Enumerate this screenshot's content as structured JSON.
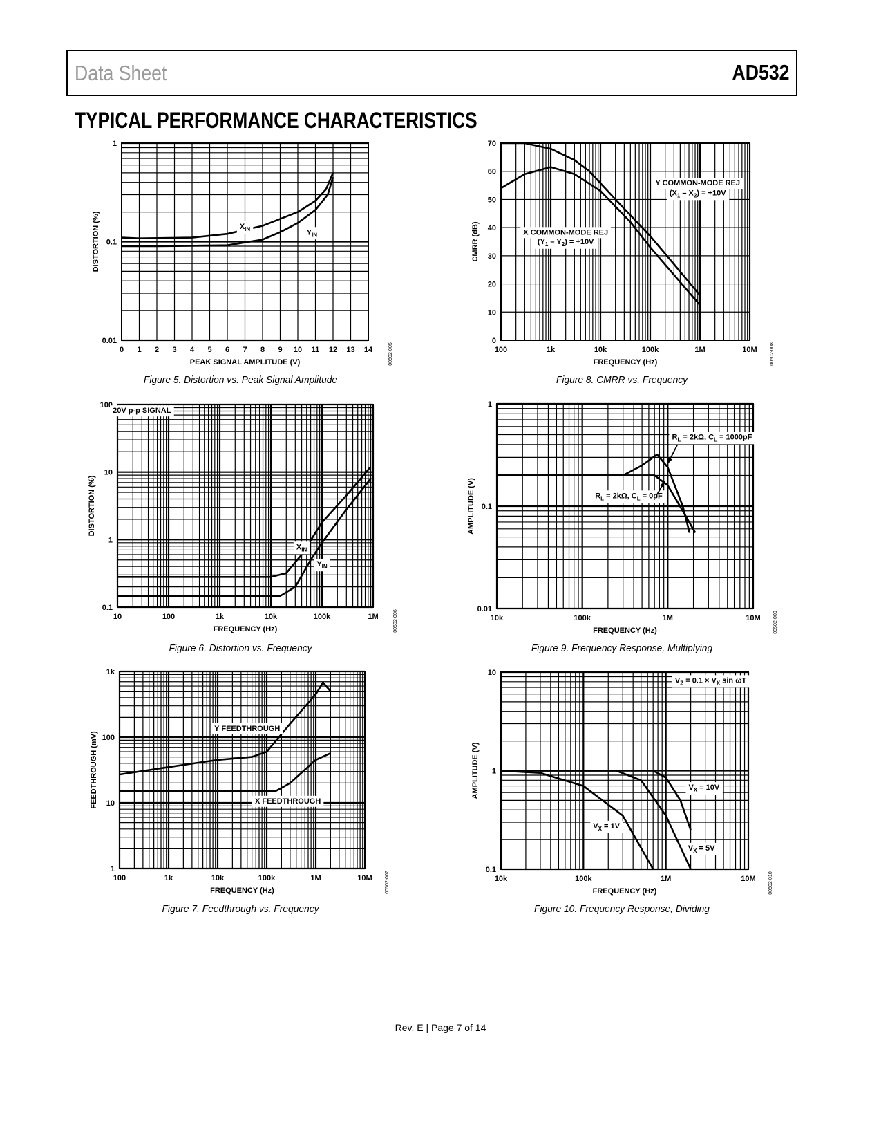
{
  "header": {
    "left": "Data Sheet",
    "right": "AD532"
  },
  "section_title": "TYPICAL PERFORMANCE CHARACTERISTICS",
  "footer": "Rev. E | Page 7 of 14",
  "chart_data": [
    {
      "id": "fig5",
      "type": "line",
      "caption": "Figure 5. Distortion vs. Peak Signal Amplitude",
      "code": "00502-005",
      "xlabel": "PEAK SIGNAL AMPLITUDE (V)",
      "ylabel": "DISTORTION (%)",
      "xscale": "linear",
      "xlim": [
        0,
        14
      ],
      "yscale": "log",
      "ylim": [
        0.01,
        1
      ],
      "xticks": [
        [
          0,
          "0"
        ],
        [
          1,
          "1"
        ],
        [
          2,
          "2"
        ],
        [
          3,
          "3"
        ],
        [
          4,
          "4"
        ],
        [
          5,
          "5"
        ],
        [
          6,
          "6"
        ],
        [
          7,
          "7"
        ],
        [
          8,
          "8"
        ],
        [
          9,
          "9"
        ],
        [
          10,
          "10"
        ],
        [
          11,
          "11"
        ],
        [
          12,
          "12"
        ],
        [
          13,
          "13"
        ],
        [
          14,
          "14"
        ]
      ],
      "yticks": [
        [
          0.01,
          "0.01"
        ],
        [
          0.1,
          "0.1"
        ],
        [
          1,
          "1"
        ]
      ],
      "series": [
        {
          "name": "XIN",
          "points": [
            [
              0,
              0.11
            ],
            [
              1,
              0.108
            ],
            [
              4,
              0.11
            ],
            [
              6,
              0.12
            ],
            [
              8,
              0.145
            ],
            [
              10,
              0.2
            ],
            [
              11,
              0.26
            ],
            [
              11.6,
              0.34
            ],
            [
              12,
              0.5
            ]
          ]
        },
        {
          "name": "YIN",
          "points": [
            [
              0,
              0.09
            ],
            [
              2,
              0.09
            ],
            [
              6,
              0.092
            ],
            [
              8,
              0.105
            ],
            [
              9,
              0.125
            ],
            [
              10,
              0.155
            ],
            [
              11,
              0.21
            ],
            [
              11.7,
              0.3
            ],
            [
              12,
              0.45
            ]
          ]
        }
      ],
      "annotations": [
        {
          "at": [
            7,
            0.135
          ],
          "parts": [
            {
              "t": "X"
            },
            {
              "t": "IN",
              "sub": true
            }
          ]
        },
        {
          "at": [
            10.8,
            0.118
          ],
          "parts": [
            {
              "t": "Y"
            },
            {
              "t": "IN",
              "sub": true
            }
          ]
        }
      ]
    },
    {
      "id": "fig8",
      "type": "line",
      "caption": "Figure 8. CMRR vs. Frequency",
      "code": "00502-008",
      "xlabel": "FREQUENCY (Hz)",
      "ylabel": "CMRR (dB)",
      "xscale": "log",
      "xlim": [
        100,
        10000000
      ],
      "yscale": "linear",
      "ylim": [
        0,
        70
      ],
      "xticks": [
        [
          100,
          "100"
        ],
        [
          1000,
          "1k"
        ],
        [
          10000,
          "10k"
        ],
        [
          100000,
          "100k"
        ],
        [
          1000000,
          "1M"
        ],
        [
          10000000,
          "10M"
        ]
      ],
      "yticks": [
        [
          0,
          "0"
        ],
        [
          10,
          "10"
        ],
        [
          20,
          "20"
        ],
        [
          30,
          "30"
        ],
        [
          40,
          "40"
        ],
        [
          50,
          "50"
        ],
        [
          60,
          "60"
        ],
        [
          70,
          "70"
        ]
      ],
      "series": [
        {
          "name": "Y COMMON-MODE REJ",
          "points": [
            [
              100,
              70
            ],
            [
              300,
              70
            ],
            [
              1000,
              68
            ],
            [
              3000,
              64
            ],
            [
              6000,
              60
            ],
            [
              20000,
              50
            ],
            [
              100000,
              37
            ],
            [
              300000,
              27
            ],
            [
              1000000,
              16
            ]
          ]
        },
        {
          "name": "X COMMON-MODE REJ",
          "points": [
            [
              100,
              54
            ],
            [
              300,
              59
            ],
            [
              1000,
              61.5
            ],
            [
              3000,
              59
            ],
            [
              10000,
              53
            ],
            [
              40000,
              42
            ],
            [
              100000,
              33
            ],
            [
              1000000,
              12.5
            ]
          ]
        }
      ],
      "annotations": [
        {
          "at": [
            900000,
            55
          ],
          "parts": [
            {
              "t": "Y COMMON-MODE REJ"
            }
          ]
        },
        {
          "at": [
            900000,
            51.5
          ],
          "parts": [
            {
              "t": "(X"
            },
            {
              "t": "1",
              "sub": true
            },
            {
              "t": " – X"
            },
            {
              "t": "2",
              "sub": true
            },
            {
              "t": ") = +10V"
            }
          ]
        },
        {
          "at": [
            2000,
            37.5
          ],
          "parts": [
            {
              "t": "X COMMON-MODE REJ"
            }
          ]
        },
        {
          "at": [
            2000,
            34.2
          ],
          "parts": [
            {
              "t": "(Y"
            },
            {
              "t": "1",
              "sub": true
            },
            {
              "t": " – Y"
            },
            {
              "t": "2",
              "sub": true
            },
            {
              "t": ") = +10V"
            }
          ]
        }
      ]
    },
    {
      "id": "fig6",
      "type": "line",
      "caption": "Figure 6. Distortion vs. Frequency",
      "code": "00502-006",
      "xlabel": "FREQUENCY (Hz)",
      "ylabel": "DISTORTION (%)",
      "xscale": "log",
      "xlim": [
        10,
        1000000
      ],
      "yscale": "log",
      "ylim": [
        0.1,
        100
      ],
      "xticks": [
        [
          10,
          "10"
        ],
        [
          100,
          "100"
        ],
        [
          1000,
          "1k"
        ],
        [
          10000,
          "10k"
        ],
        [
          100000,
          "100k"
        ],
        [
          1000000,
          "1M"
        ]
      ],
      "yticks": [
        [
          0.1,
          "0.1"
        ],
        [
          1,
          "1"
        ],
        [
          10,
          "10"
        ],
        [
          100,
          "100"
        ]
      ],
      "series": [
        {
          "name": "XIN",
          "points": [
            [
              10,
              0.28
            ],
            [
              10000,
              0.28
            ],
            [
              20000,
              0.32
            ],
            [
              40000,
              0.6
            ],
            [
              100000,
              1.8
            ],
            [
              300000,
              4.5
            ],
            [
              900000,
              12
            ]
          ]
        },
        {
          "name": "YIN",
          "points": [
            [
              10,
              0.145
            ],
            [
              15000,
              0.145
            ],
            [
              30000,
              0.2
            ],
            [
              60000,
              0.5
            ],
            [
              100000,
              0.9
            ],
            [
              300000,
              2.8
            ],
            [
              900000,
              8
            ]
          ]
        }
      ],
      "annotations": [
        {
          "at": [
            30,
            75
          ],
          "parts": [
            {
              "t": "20V p-p SIGNAL"
            }
          ]
        },
        {
          "at": [
            40000,
            0.72
          ],
          "parts": [
            {
              "t": "X"
            },
            {
              "t": "IN",
              "sub": true
            }
          ]
        },
        {
          "at": [
            100000,
            0.4
          ],
          "parts": [
            {
              "t": "Y"
            },
            {
              "t": "IN",
              "sub": true
            }
          ]
        }
      ]
    },
    {
      "id": "fig9",
      "type": "line",
      "caption": "Figure 9. Frequency Response, Multiplying",
      "code": "00502-009",
      "xlabel": "FREQUENCY (Hz)",
      "ylabel": "AMPLITUDE (V)",
      "xscale": "log",
      "xlim": [
        10000,
        10000000
      ],
      "yscale": "log",
      "ylim": [
        0.01,
        1
      ],
      "xticks": [
        [
          10000,
          "10k"
        ],
        [
          100000,
          "100k"
        ],
        [
          1000000,
          "1M"
        ],
        [
          10000000,
          "10M"
        ]
      ],
      "yticks": [
        [
          0.01,
          "0.01"
        ],
        [
          0.1,
          "0.1"
        ],
        [
          1,
          "1"
        ]
      ],
      "series": [
        {
          "name": "RL = 2kΩ, CL = 1000pF",
          "points": [
            [
              10000,
              0.2
            ],
            [
              300000,
              0.2
            ],
            [
              500000,
              0.25
            ],
            [
              750000,
              0.32
            ],
            [
              1000000,
              0.24
            ],
            [
              1500000,
              0.1
            ],
            [
              1800000,
              0.055
            ]
          ]
        },
        {
          "name": "RL = 2kΩ, CL = 0pF",
          "points": [
            [
              10000,
              0.2
            ],
            [
              700000,
              0.2
            ],
            [
              1000000,
              0.16
            ],
            [
              1500000,
              0.09
            ],
            [
              2100000,
              0.055
            ]
          ]
        }
      ],
      "annotations": [
        {
          "at": [
            3300000,
            0.45
          ],
          "parts": [
            {
              "t": "R"
            },
            {
              "t": "L",
              "sub": true
            },
            {
              "t": " = 2kΩ, C"
            },
            {
              "t": "L",
              "sub": true
            },
            {
              "t": " = 1000pF"
            }
          ],
          "arrow": [
            [
              1300000,
              0.4
            ],
            [
              1000000,
              0.26
            ]
          ]
        },
        {
          "at": [
            350000,
            0.12
          ],
          "parts": [
            {
              "t": "R"
            },
            {
              "t": "L",
              "sub": true
            },
            {
              "t": " = 2kΩ, C"
            },
            {
              "t": "L",
              "sub": true
            },
            {
              "t": " = 0pF"
            }
          ],
          "arrow": [
            [
              750000,
              0.13
            ],
            [
              920000,
              0.175
            ]
          ]
        }
      ]
    },
    {
      "id": "fig7",
      "type": "line",
      "caption": "Figure 7. Feedthrough vs. Frequency",
      "code": "00502-007",
      "xlabel": "FREQUENCY (Hz)",
      "ylabel": "FEEDTHROUGH (mV)",
      "xscale": "log",
      "xlim": [
        100,
        10000000
      ],
      "yscale": "log",
      "ylim": [
        1,
        1000
      ],
      "xticks": [
        [
          100,
          "100"
        ],
        [
          1000,
          "1k"
        ],
        [
          10000,
          "10k"
        ],
        [
          100000,
          "100k"
        ],
        [
          1000000,
          "1M"
        ],
        [
          10000000,
          "10M"
        ]
      ],
      "yticks": [
        [
          1,
          "1"
        ],
        [
          10,
          "10"
        ],
        [
          100,
          "100"
        ],
        [
          1000,
          "1k"
        ]
      ],
      "series": [
        {
          "name": "Y FEEDTHROUGH",
          "points": [
            [
              100,
              27
            ],
            [
              1000,
              35
            ],
            [
              10000,
              45
            ],
            [
              50000,
              50
            ],
            [
              100000,
              60
            ],
            [
              300000,
              160
            ],
            [
              1000000,
              450
            ],
            [
              1400000,
              680
            ],
            [
              2000000,
              500
            ]
          ]
        },
        {
          "name": "X FEEDTHROUGH",
          "points": [
            [
              100,
              15
            ],
            [
              150000,
              15
            ],
            [
              300000,
              20
            ],
            [
              1000000,
              45
            ],
            [
              2000000,
              57
            ]
          ]
        }
      ],
      "annotations": [
        {
          "at": [
            40000,
            125
          ],
          "parts": [
            {
              "t": "Y FEEDTHROUGH"
            }
          ]
        },
        {
          "at": [
            270000,
            9.8
          ],
          "parts": [
            {
              "t": "X FEEDTHROUGH"
            }
          ]
        }
      ]
    },
    {
      "id": "fig10",
      "type": "line",
      "caption": "Figure 10. Frequency Response, Dividing",
      "code": "00502-010",
      "xlabel": "FREQUENCY (Hz)",
      "ylabel": "AMPLITUDE (V)",
      "xscale": "log",
      "xlim": [
        10000,
        10000000
      ],
      "yscale": "log",
      "ylim": [
        0.1,
        10
      ],
      "xticks": [
        [
          10000,
          "10k"
        ],
        [
          100000,
          "100k"
        ],
        [
          1000000,
          "1M"
        ],
        [
          10000000,
          "10M"
        ]
      ],
      "yticks": [
        [
          0.1,
          "0.1"
        ],
        [
          1,
          "1"
        ],
        [
          10,
          "10"
        ]
      ],
      "series": [
        {
          "name": "VX = 10V",
          "points": [
            [
              10000,
              1
            ],
            [
              700000,
              1
            ],
            [
              1000000,
              0.85
            ],
            [
              1500000,
              0.5
            ],
            [
              2000000,
              0.25
            ]
          ]
        },
        {
          "name": "VX = 5V",
          "points": [
            [
              10000,
              1
            ],
            [
              250000,
              1
            ],
            [
              500000,
              0.8
            ],
            [
              1000000,
              0.35
            ],
            [
              2000000,
              0.1
            ]
          ]
        },
        {
          "name": "VX = 1V",
          "points": [
            [
              10000,
              1
            ],
            [
              30000,
              0.95
            ],
            [
              100000,
              0.7
            ],
            [
              300000,
              0.35
            ],
            [
              700000,
              0.1
            ]
          ]
        }
      ],
      "annotations": [
        {
          "at": [
            3500000,
            7.8
          ],
          "parts": [
            {
              "t": "V"
            },
            {
              "t": "Z",
              "sub": true
            },
            {
              "t": " = 0.1 × V"
            },
            {
              "t": "X",
              "sub": true
            },
            {
              "t": " sin ωT"
            }
          ]
        },
        {
          "at": [
            2900000,
            0.64
          ],
          "parts": [
            {
              "t": "V"
            },
            {
              "t": "X",
              "sub": true
            },
            {
              "t": " = 10V"
            }
          ]
        },
        {
          "at": [
            190000,
            0.26
          ],
          "parts": [
            {
              "t": "V"
            },
            {
              "t": "X",
              "sub": true
            },
            {
              "t": " = 1V"
            }
          ]
        },
        {
          "at": [
            2700000,
            0.155
          ],
          "parts": [
            {
              "t": "V"
            },
            {
              "t": "X",
              "sub": true
            },
            {
              "t": " = 5V"
            }
          ]
        }
      ]
    }
  ]
}
